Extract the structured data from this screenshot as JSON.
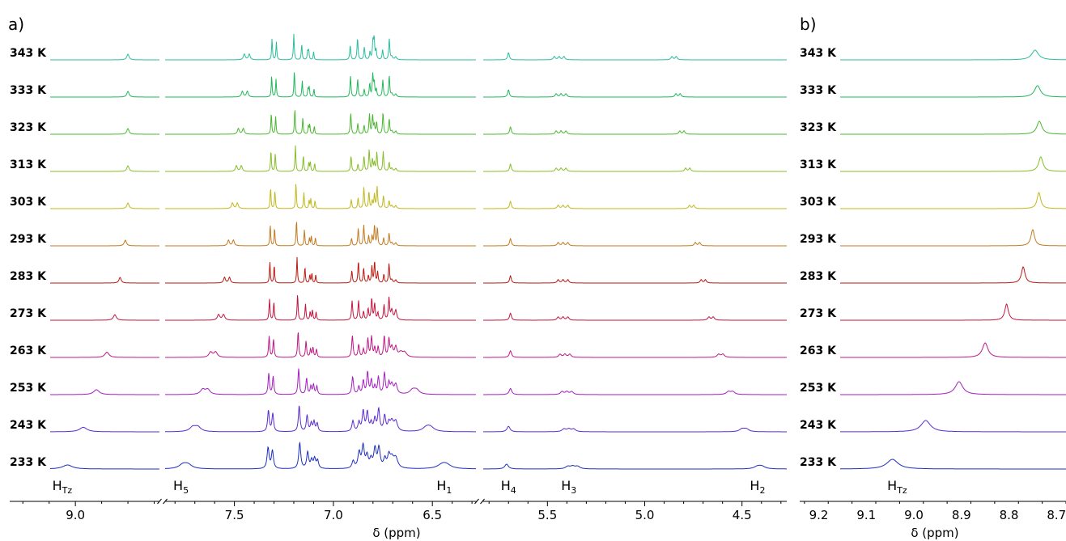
{
  "panel_labels": {
    "a": "a)",
    "b": "b)"
  },
  "colors": [
    "#2bbd9f",
    "#21b85b",
    "#49b82f",
    "#85be26",
    "#c1b81c",
    "#c27a1f",
    "#b81a12",
    "#c2143f",
    "#bd1887",
    "#a51ec0",
    "#5a2ad0",
    "#1e2fbf"
  ],
  "chart_data": [
    {
      "id": "panel-a",
      "type": "line",
      "title": "",
      "xlabel": "δ (ppm)",
      "ylabel": "",
      "x_direction": "descending",
      "axis_segments": [
        {
          "xlim": [
            9.25,
            8.68
          ],
          "ticks": [
            9.0
          ],
          "tick_labels": [
            "9.0"
          ]
        },
        {
          "xlim": [
            7.85,
            6.28
          ],
          "ticks": [
            7.5,
            7.0,
            6.5
          ],
          "tick_labels": [
            "7.5",
            "7.0",
            "6.5"
          ]
        },
        {
          "xlim": [
            5.83,
            4.27
          ],
          "ticks": [
            5.5,
            5.0,
            4.5
          ],
          "tick_labels": [
            "5.5",
            "5.0",
            "4.5"
          ]
        }
      ],
      "series": [
        {
          "name": "343 K",
          "HTz": 8.8,
          "H5": 7.45,
          "H1": null,
          "H4": 5.7,
          "H3": 5.44,
          "H2": 4.86,
          "broad": 0.0
        },
        {
          "name": "333 K",
          "HTz": 8.8,
          "H5": 7.46,
          "H1": null,
          "H4": 5.7,
          "H3": 5.43,
          "H2": 4.84,
          "broad": 0.0
        },
        {
          "name": "323 K",
          "HTz": 8.8,
          "H5": 7.48,
          "H1": null,
          "H4": 5.69,
          "H3": 5.43,
          "H2": 4.82,
          "broad": 0.0
        },
        {
          "name": "313 K",
          "HTz": 8.8,
          "H5": 7.49,
          "H1": null,
          "H4": 5.69,
          "H3": 5.43,
          "H2": 4.79,
          "broad": 0.0
        },
        {
          "name": "303 K",
          "HTz": 8.8,
          "H5": 7.51,
          "H1": null,
          "H4": 5.69,
          "H3": 5.42,
          "H2": 4.77,
          "broad": 0.0
        },
        {
          "name": "293 K",
          "HTz": 8.81,
          "H5": 7.53,
          "H1": null,
          "H4": 5.69,
          "H3": 5.42,
          "H2": 4.74,
          "broad": 0.0
        },
        {
          "name": "283 K",
          "HTz": 8.83,
          "H5": 7.55,
          "H1": null,
          "H4": 5.69,
          "H3": 5.42,
          "H2": 4.71,
          "broad": 0.0
        },
        {
          "name": "273 K",
          "HTz": 8.85,
          "H5": 7.58,
          "H1": null,
          "H4": 5.69,
          "H3": 5.42,
          "H2": 4.67,
          "broad": 0.1
        },
        {
          "name": "263 K",
          "HTz": 8.88,
          "H5": 7.62,
          "H1": 6.66,
          "H4": 5.69,
          "H3": 5.41,
          "H2": 4.62,
          "broad": 0.25
        },
        {
          "name": "253 K",
          "HTz": 8.92,
          "H5": 7.66,
          "H1": 6.6,
          "H4": 5.69,
          "H3": 5.4,
          "H2": 4.57,
          "broad": 0.45
        },
        {
          "name": "243 K",
          "HTz": 8.97,
          "H5": 7.71,
          "H1": 6.53,
          "H4": 5.7,
          "H3": 5.39,
          "H2": 4.5,
          "broad": 0.7
        },
        {
          "name": "233 K",
          "HTz": 9.03,
          "H5": 7.76,
          "H1": 6.45,
          "H4": 5.71,
          "H3": 5.37,
          "H2": 4.42,
          "broad": 1.0
        }
      ],
      "peak_labels": [
        {
          "text": "H",
          "sub": "Tz",
          "x": 9.05
        },
        {
          "text": "H",
          "sub": "5",
          "x": 7.77
        },
        {
          "text": "H",
          "sub": "1",
          "x": 6.44
        },
        {
          "text": "H",
          "sub": "4",
          "x": 5.7
        },
        {
          "text": "H",
          "sub": "3",
          "x": 5.39
        },
        {
          "text": "H",
          "sub": "2",
          "x": 4.42
        }
      ]
    },
    {
      "id": "panel-b",
      "type": "line",
      "title": "",
      "xlabel": "δ (ppm)",
      "ylabel": "",
      "x_direction": "descending",
      "xlim": [
        9.24,
        8.68
      ],
      "ticks": [
        9.2,
        9.1,
        9.0,
        8.9,
        8.8,
        8.7
      ],
      "tick_labels": [
        "9.2",
        "9.1",
        "9.0",
        "8.9",
        "8.8",
        "8.7"
      ],
      "series": [
        {
          "name": "343 K",
          "HTz": 8.745
        },
        {
          "name": "333 K",
          "HTz": 8.74
        },
        {
          "name": "323 K",
          "HTz": 8.736
        },
        {
          "name": "313 K",
          "HTz": 8.733
        },
        {
          "name": "303 K",
          "HTz": 8.737
        },
        {
          "name": "293 K",
          "HTz": 8.75
        },
        {
          "name": "283 K",
          "HTz": 8.77
        },
        {
          "name": "273 K",
          "HTz": 8.805
        },
        {
          "name": "263 K",
          "HTz": 8.85
        },
        {
          "name": "253 K",
          "HTz": 8.905
        },
        {
          "name": "243 K",
          "HTz": 8.975
        },
        {
          "name": "233 K",
          "HTz": 9.045
        }
      ],
      "peak_labels": [
        {
          "text": "H",
          "sub": "Tz",
          "x": 9.035
        }
      ]
    }
  ]
}
